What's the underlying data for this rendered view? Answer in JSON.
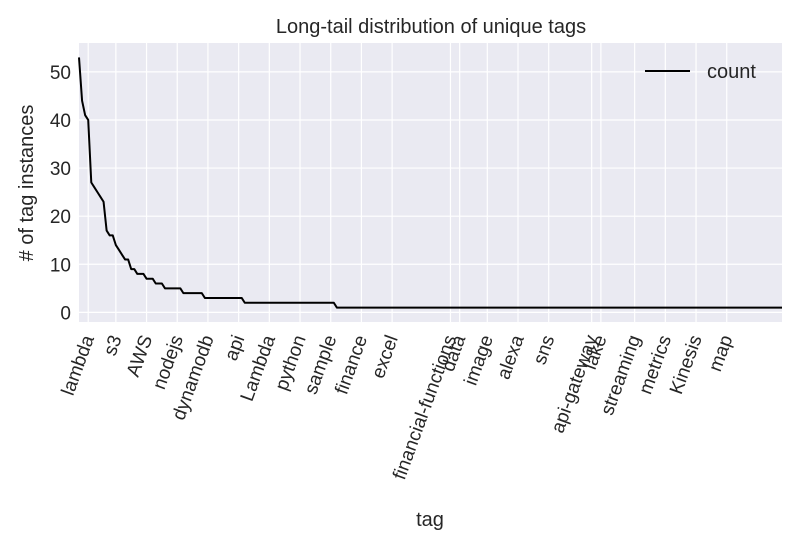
{
  "chart_data": {
    "type": "line",
    "title": "Long-tail distribution of unique tags",
    "xlabel": "tag",
    "ylabel": "# of tag instances",
    "ylim": [
      -2,
      56
    ],
    "yticks": [
      0,
      10,
      20,
      30,
      40,
      50
    ],
    "xticks": [
      "lambda",
      "s3",
      "AWS",
      "nodejs",
      "dynamodb",
      "api",
      "Lambda",
      "python",
      "sample",
      "finance",
      "excel",
      "financial-functions",
      "data",
      "image",
      "alexa",
      "sns",
      "api-gateway",
      "lake",
      "streaming",
      "metrics",
      "Kinesis",
      "map"
    ],
    "xtick_rank": [
      3,
      12,
      22,
      32,
      42,
      52,
      62,
      72,
      82,
      92,
      102,
      121,
      124,
      133,
      143,
      153,
      167,
      170,
      181,
      191,
      201,
      211
    ],
    "x_rank_range": [
      0,
      229
    ],
    "grid": true,
    "legend": {
      "position": "top-right",
      "entries": [
        "count"
      ]
    },
    "series": [
      {
        "name": "count",
        "color": "#000000",
        "points": [
          [
            0,
            53
          ],
          [
            1,
            44
          ],
          [
            2,
            41
          ],
          [
            3,
            40
          ],
          [
            4,
            27
          ],
          [
            5,
            26
          ],
          [
            6,
            25
          ],
          [
            7,
            24
          ],
          [
            8,
            23
          ],
          [
            9,
            17
          ],
          [
            10,
            16
          ],
          [
            11,
            16
          ],
          [
            12,
            14
          ],
          [
            13,
            13
          ],
          [
            14,
            12
          ],
          [
            15,
            11
          ],
          [
            16,
            11
          ],
          [
            17,
            9
          ],
          [
            18,
            9
          ],
          [
            19,
            8
          ],
          [
            20,
            8
          ],
          [
            21,
            8
          ],
          [
            22,
            7
          ],
          [
            23,
            7
          ],
          [
            24,
            7
          ],
          [
            25,
            6
          ],
          [
            26,
            6
          ],
          [
            27,
            6
          ],
          [
            28,
            5
          ],
          [
            29,
            5
          ],
          [
            30,
            5
          ],
          [
            31,
            5
          ],
          [
            32,
            5
          ],
          [
            33,
            5
          ],
          [
            34,
            4
          ],
          [
            35,
            4
          ],
          [
            36,
            4
          ],
          [
            37,
            4
          ],
          [
            38,
            4
          ],
          [
            39,
            4
          ],
          [
            40,
            4
          ],
          [
            41,
            3
          ],
          [
            42,
            3
          ],
          [
            43,
            3
          ],
          [
            44,
            3
          ],
          [
            45,
            3
          ],
          [
            46,
            3
          ],
          [
            47,
            3
          ],
          [
            48,
            3
          ],
          [
            49,
            3
          ],
          [
            50,
            3
          ],
          [
            51,
            3
          ],
          [
            52,
            3
          ],
          [
            53,
            3
          ],
          [
            54,
            2
          ],
          [
            55,
            2
          ],
          [
            56,
            2
          ],
          [
            57,
            2
          ],
          [
            58,
            2
          ],
          [
            59,
            2
          ],
          [
            60,
            2
          ],
          [
            61,
            2
          ],
          [
            62,
            2
          ],
          [
            63,
            2
          ],
          [
            64,
            2
          ],
          [
            65,
            2
          ],
          [
            66,
            2
          ],
          [
            67,
            2
          ],
          [
            68,
            2
          ],
          [
            69,
            2
          ],
          [
            70,
            2
          ],
          [
            71,
            2
          ],
          [
            72,
            2
          ],
          [
            73,
            2
          ],
          [
            74,
            2
          ],
          [
            75,
            2
          ],
          [
            76,
            2
          ],
          [
            77,
            2
          ],
          [
            78,
            2
          ],
          [
            79,
            2
          ],
          [
            80,
            2
          ],
          [
            81,
            2
          ],
          [
            82,
            2
          ],
          [
            83,
            2
          ],
          [
            84,
            1
          ],
          [
            229,
            1
          ]
        ]
      }
    ]
  }
}
